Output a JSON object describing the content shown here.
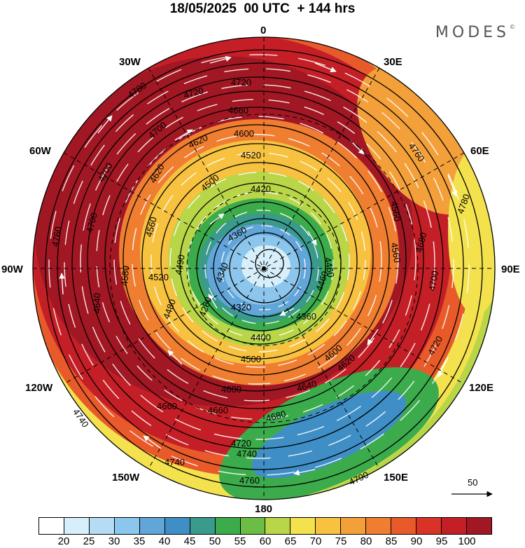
{
  "title": "18/05/2025  00 UTC  + 144 hrs",
  "brand": "MODES",
  "brand_mark": "©",
  "longitude_labels": {
    "top": "0",
    "lon30e": "30E",
    "lon60e": "60E",
    "lon90e": "90E",
    "lon120e": "120E",
    "lon150e": "150E",
    "bottom": "180",
    "lon150w": "150W",
    "lon120w": "120W",
    "lon90w": "90W",
    "lon60w": "60W",
    "lon30w": "30W"
  },
  "contour_labels": [
    "4780",
    "4720",
    "4720",
    "4660",
    "4600",
    "4700",
    "4620",
    "4520",
    "4620",
    "4420",
    "4500",
    "4560",
    "4360",
    "4700",
    "4760",
    "4700",
    "4580",
    "4520",
    "4640",
    "4490",
    "4340",
    "4320",
    "4280",
    "4480",
    "4400",
    "4460",
    "4560",
    "4680",
    "4700",
    "4780",
    "4720",
    "4600",
    "4620",
    "4760",
    "4740",
    "4740",
    "4760",
    "4600",
    "4640",
    "4660",
    "4660",
    "4680",
    "4720",
    "4740",
    "4790",
    "4500",
    "4360",
    "4460",
    "4560"
  ],
  "wind_vector_reference": "50",
  "colorbar": {
    "colors": [
      "#ffffff",
      "#d6effa",
      "#b4ddf5",
      "#8cc6ec",
      "#62a6d9",
      "#3f8fc6",
      "#3a9a8c",
      "#3cab4c",
      "#6cbd45",
      "#b8d648",
      "#f3e24d",
      "#f7c240",
      "#f4a03a",
      "#ef7e30",
      "#e85a2a",
      "#d93327",
      "#c41f26",
      "#a11723"
    ],
    "tick_labels": [
      "20",
      "25",
      "30",
      "35",
      "40",
      "45",
      "50",
      "55",
      "60",
      "65",
      "70",
      "75",
      "80",
      "85",
      "90",
      "95",
      "100"
    ]
  }
}
